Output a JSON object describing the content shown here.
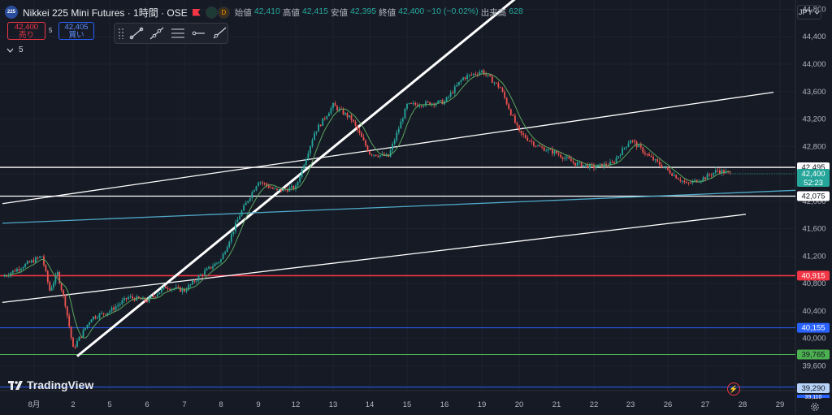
{
  "header": {
    "symbol_logo": "225",
    "title": "Nikkei 225 Mini Futures · 1時間 · OSE",
    "dot1": "",
    "dot2": "D",
    "ohlc": [
      {
        "label": "始値",
        "value": "42,410"
      },
      {
        "label": "高値",
        "value": "42,415"
      },
      {
        "label": "安値",
        "value": "42,395"
      },
      {
        "label": "終値",
        "value": "42,400 −10 (−0.02%)"
      },
      {
        "label": "出来高",
        "value": "628"
      }
    ]
  },
  "trade": {
    "sell_price": "42,400",
    "sell_label": "売り",
    "spread": "5",
    "buy_price": "42,405",
    "buy_label": "買い"
  },
  "indicator": {
    "collapse_icon": "chevron-down-icon",
    "value": "5"
  },
  "currency": "JPY",
  "brand": "TradingView",
  "colors": {
    "bg": "#161a25",
    "up": "#26a69a",
    "down": "#ef5350",
    "ma": "#5aa75f",
    "teal_line": "#4fa9c8",
    "trend": "#ffffff",
    "red_level": "#f23645",
    "blue_level": "#2962ff",
    "green_level": "#4caf50"
  },
  "chart_data": {
    "type": "candlestick",
    "title": "Nikkei 225 Mini Futures · 1時間 · OSE",
    "y_axis": {
      "ticks": [
        39600,
        40000,
        40400,
        40800,
        41200,
        41600,
        42000,
        42400,
        42800,
        43200,
        43600,
        44000,
        44400,
        44800
      ],
      "range": [
        39250,
        44900
      ]
    },
    "x_axis": {
      "ticks": [
        "8月",
        "2",
        "5",
        "6",
        "7",
        "8",
        "9",
        "12",
        "13",
        "14",
        "15",
        "16",
        "19",
        "20",
        "21",
        "22",
        "23",
        "26",
        "27",
        "28",
        "29"
      ]
    },
    "price_path": [
      {
        "x": "8月",
        "y": 40900
      },
      {
        "x": "8月",
        "y": 41200
      },
      {
        "x": "8月",
        "y": 40700
      },
      {
        "x": "8月",
        "y": 40950
      },
      {
        "x": "8月",
        "y": 40500
      },
      {
        "x": "2",
        "y": 39850
      },
      {
        "x": "2",
        "y": 40300
      },
      {
        "x": "5",
        "y": 40400
      },
      {
        "x": "5",
        "y": 40600
      },
      {
        "x": "6",
        "y": 40550
      },
      {
        "x": "6",
        "y": 40750
      },
      {
        "x": "7",
        "y": 40700
      },
      {
        "x": "7",
        "y": 40950
      },
      {
        "x": "8",
        "y": 41150
      },
      {
        "x": "8",
        "y": 41800
      },
      {
        "x": "9",
        "y": 42300
      },
      {
        "x": "9",
        "y": 42150
      },
      {
        "x": "12",
        "y": 42200
      },
      {
        "x": "12",
        "y": 43000
      },
      {
        "x": "13",
        "y": 43400
      },
      {
        "x": "13",
        "y": 43200
      },
      {
        "x": "14",
        "y": 42700
      },
      {
        "x": "14",
        "y": 42650
      },
      {
        "x": "15",
        "y": 43400
      },
      {
        "x": "16",
        "y": 43450
      },
      {
        "x": "16",
        "y": 43800
      },
      {
        "x": "19",
        "y": 43900
      },
      {
        "x": "19",
        "y": 43650
      },
      {
        "x": "20",
        "y": 43000
      },
      {
        "x": "20",
        "y": 42800
      },
      {
        "x": "21",
        "y": 42700
      },
      {
        "x": "21",
        "y": 42550
      },
      {
        "x": "22",
        "y": 42500
      },
      {
        "x": "22",
        "y": 42550
      },
      {
        "x": "23",
        "y": 42900
      },
      {
        "x": "23",
        "y": 42650
      },
      {
        "x": "26",
        "y": 42450
      },
      {
        "x": "26",
        "y": 42250
      },
      {
        "x": "27",
        "y": 42350
      },
      {
        "x": "27",
        "y": 42450
      },
      {
        "x": "27",
        "y": 42400
      }
    ],
    "horizontal_levels": [
      {
        "label": "42,495",
        "value": 42495,
        "color": "#ffffff"
      },
      {
        "label": "42,075",
        "value": 42075,
        "color": "#ffffff"
      },
      {
        "label": "40,915",
        "value": 40915,
        "color": "#f23645"
      },
      {
        "label": "40,155",
        "value": 40155,
        "color": "#2962ff"
      },
      {
        "label": "39,765",
        "value": 39765,
        "color": "#4caf50"
      },
      {
        "label": "39,290",
        "value": 39290,
        "color": "#2962ff"
      }
    ],
    "current_price": {
      "label": "42,400",
      "countdown": "52:23",
      "value": 42400
    },
    "partial_label": "39,110",
    "trend_lines": [
      {
        "from": {
          "x": "2",
          "y": 39740
        },
        "to": {
          "x": "20",
          "y": 45000
        },
        "width": "thick"
      },
      {
        "from": {
          "x": "8月",
          "y": 41965
        },
        "to": {
          "x": "28",
          "y": 43590
        }
      },
      {
        "from": {
          "x": "8月",
          "y": 40525
        },
        "to": {
          "x": "28",
          "y": 41810
        }
      },
      {
        "from": {
          "x": "8月",
          "y": 41680
        },
        "to": {
          "x": "29",
          "y": 42160
        },
        "color": "#4fa9c8"
      }
    ]
  }
}
